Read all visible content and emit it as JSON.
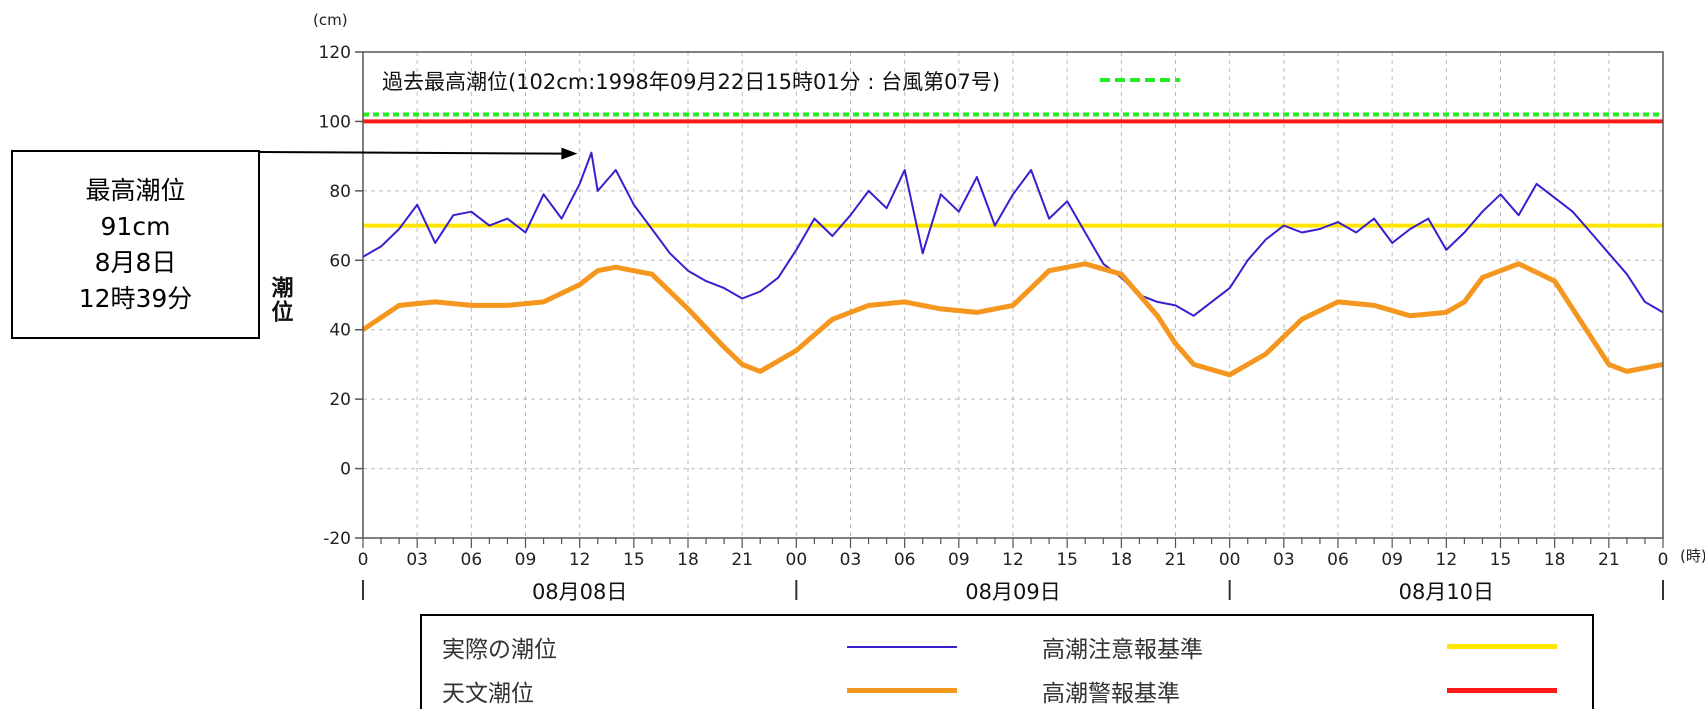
{
  "chart_data": {
    "type": "line",
    "ylabel": "潮位",
    "yunit": "(cm)",
    "xunit": "(時)",
    "ylim": [
      -20,
      120
    ],
    "yticks": [
      -20,
      0,
      20,
      40,
      60,
      80,
      100,
      120
    ],
    "x_hours": [
      0,
      72
    ],
    "xtick_labels": [
      "0",
      "03",
      "06",
      "09",
      "12",
      "15",
      "18",
      "21",
      "00",
      "03",
      "06",
      "09",
      "12",
      "15",
      "18",
      "21",
      "00",
      "03",
      "06",
      "09",
      "12",
      "15",
      "18",
      "21",
      "0"
    ],
    "days": [
      "08月08日",
      "08月09日",
      "08月10日"
    ],
    "grid": true,
    "series": [
      {
        "name": "実際の潮位",
        "color": "#3a1fd0",
        "x": [
          0,
          1,
          2,
          3,
          4,
          5,
          6,
          7,
          8,
          9,
          10,
          11,
          12,
          12.65,
          13,
          14,
          15,
          16,
          17,
          18,
          19,
          20,
          21,
          22,
          23,
          24,
          25,
          26,
          27,
          28,
          29,
          30,
          31,
          32,
          33,
          34,
          35,
          36,
          37,
          38,
          39,
          40,
          41,
          42,
          43,
          44,
          45,
          46,
          47,
          48,
          49,
          50,
          51,
          52,
          53,
          54,
          55,
          56,
          57,
          58,
          59,
          60,
          61,
          62,
          63,
          64,
          65,
          66,
          67,
          68,
          69,
          70,
          71,
          72
        ],
        "values": [
          61,
          64,
          69,
          76,
          65,
          73,
          74,
          70,
          72,
          68,
          79,
          72,
          82,
          91,
          80,
          86,
          76,
          69,
          62,
          57,
          54,
          52,
          49,
          51,
          55,
          63,
          72,
          67,
          73,
          80,
          75,
          86,
          62,
          79,
          74,
          84,
          70,
          79,
          86,
          72,
          77,
          68,
          59,
          55,
          50,
          48,
          47,
          44,
          48,
          52,
          60,
          66,
          70,
          68,
          69,
          71,
          68,
          72,
          65,
          69,
          72,
          63,
          68,
          74,
          79,
          73,
          82,
          78,
          74,
          68,
          62,
          56,
          48,
          45
        ]
      },
      {
        "name": "天文潮位",
        "color": "#f5961e",
        "x": [
          0,
          2,
          4,
          6,
          8,
          10,
          12,
          13,
          14,
          16,
          18,
          20,
          21,
          22,
          24,
          26,
          28,
          30,
          32,
          34,
          36,
          37,
          38,
          40,
          42,
          44,
          45,
          46,
          48,
          50,
          52,
          54,
          56,
          58,
          60,
          61,
          62,
          64,
          66,
          68,
          69,
          70,
          72
        ],
        "values": [
          40,
          47,
          48,
          47,
          47,
          48,
          53,
          57,
          58,
          56,
          46,
          35,
          30,
          28,
          34,
          43,
          47,
          48,
          46,
          45,
          47,
          52,
          57,
          59,
          56,
          44,
          36,
          30,
          27,
          33,
          43,
          48,
          47,
          44,
          45,
          48,
          55,
          59,
          54,
          38,
          30,
          28,
          30
        ]
      },
      {
        "name": "高潮注意報基準",
        "color": "#ffe600",
        "x": [
          0,
          72
        ],
        "values": [
          70,
          70
        ]
      },
      {
        "name": "高潮警報基準",
        "color": "#ff1a1a",
        "x": [
          0,
          72
        ],
        "values": [
          100,
          100
        ]
      },
      {
        "name": "過去最高潮位",
        "color": "#22ee22",
        "dashed": true,
        "x": [
          0,
          72
        ],
        "values": [
          102,
          102
        ]
      }
    ],
    "annotation": "過去最高潮位(102cm:1998年09月22日15時01分 : 台風第07号)",
    "peak_marker": {
      "x": 12.65,
      "y": 91
    }
  },
  "callout": {
    "line1": "最高潮位",
    "line2": "91cm",
    "line3": "8月8日",
    "line4": "12時39分"
  },
  "legend": {
    "observed": "実際の潮位",
    "astronomical": "天文潮位",
    "advisory": "高潮注意報基準",
    "warning": "高潮警報基準",
    "observed_color": "#3a1fd0",
    "astronomical_color": "#f5961e",
    "advisory_color": "#ffe600",
    "warning_color": "#ff1a1a"
  }
}
